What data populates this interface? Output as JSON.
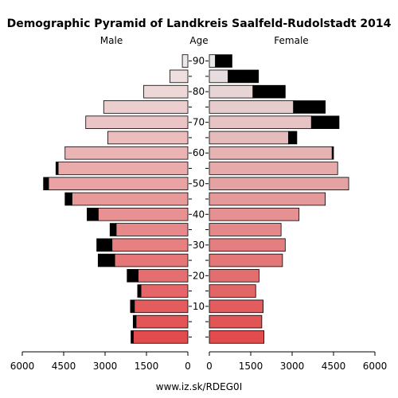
{
  "chart_data": {
    "type": "bar",
    "title": "Demographic Pyramid of Landkreis Saalfeld-Rudolstadt 2014",
    "left_label": "Male",
    "center_label": "Age",
    "right_label": "Female",
    "source": "www.iz.sk/RDEG0I",
    "x_ticks_male": [
      "6000",
      "4500",
      "3000",
      "1500",
      "0"
    ],
    "x_ticks_female": [
      "0",
      "1500",
      "3000",
      "4500",
      "6000"
    ],
    "age_ticks": [
      "90",
      "80",
      "70",
      "60",
      "50",
      "40",
      "30",
      "20",
      "10"
    ],
    "xlim": [
      0,
      6000
    ],
    "age_groups": [
      "0-4",
      "5-9",
      "10-14",
      "15-19",
      "20-24",
      "25-29",
      "30-34",
      "35-39",
      "40-44",
      "45-49",
      "50-54",
      "55-59",
      "60-64",
      "65-69",
      "70-74",
      "75-79",
      "80-84",
      "85-89",
      "90+"
    ],
    "series": [
      {
        "name": "Male",
        "values": [
          1980,
          1880,
          1940,
          1700,
          1800,
          2650,
          2750,
          2600,
          3250,
          4200,
          5050,
          4700,
          4450,
          2900,
          3700,
          3050,
          1600,
          650,
          200
        ],
        "excess": [
          80,
          100,
          140,
          120,
          400,
          600,
          550,
          220,
          400,
          250,
          180,
          80,
          0,
          0,
          0,
          0,
          0,
          0,
          0
        ]
      },
      {
        "name": "Female",
        "values": [
          1980,
          1900,
          1950,
          1680,
          1800,
          2650,
          2750,
          2600,
          3250,
          4200,
          5050,
          4650,
          4450,
          2870,
          3700,
          3050,
          1580,
          680,
          220
        ],
        "excess": [
          0,
          0,
          0,
          0,
          0,
          0,
          0,
          0,
          0,
          0,
          0,
          0,
          50,
          300,
          1000,
          1150,
          1170,
          1100,
          600
        ]
      }
    ]
  }
}
